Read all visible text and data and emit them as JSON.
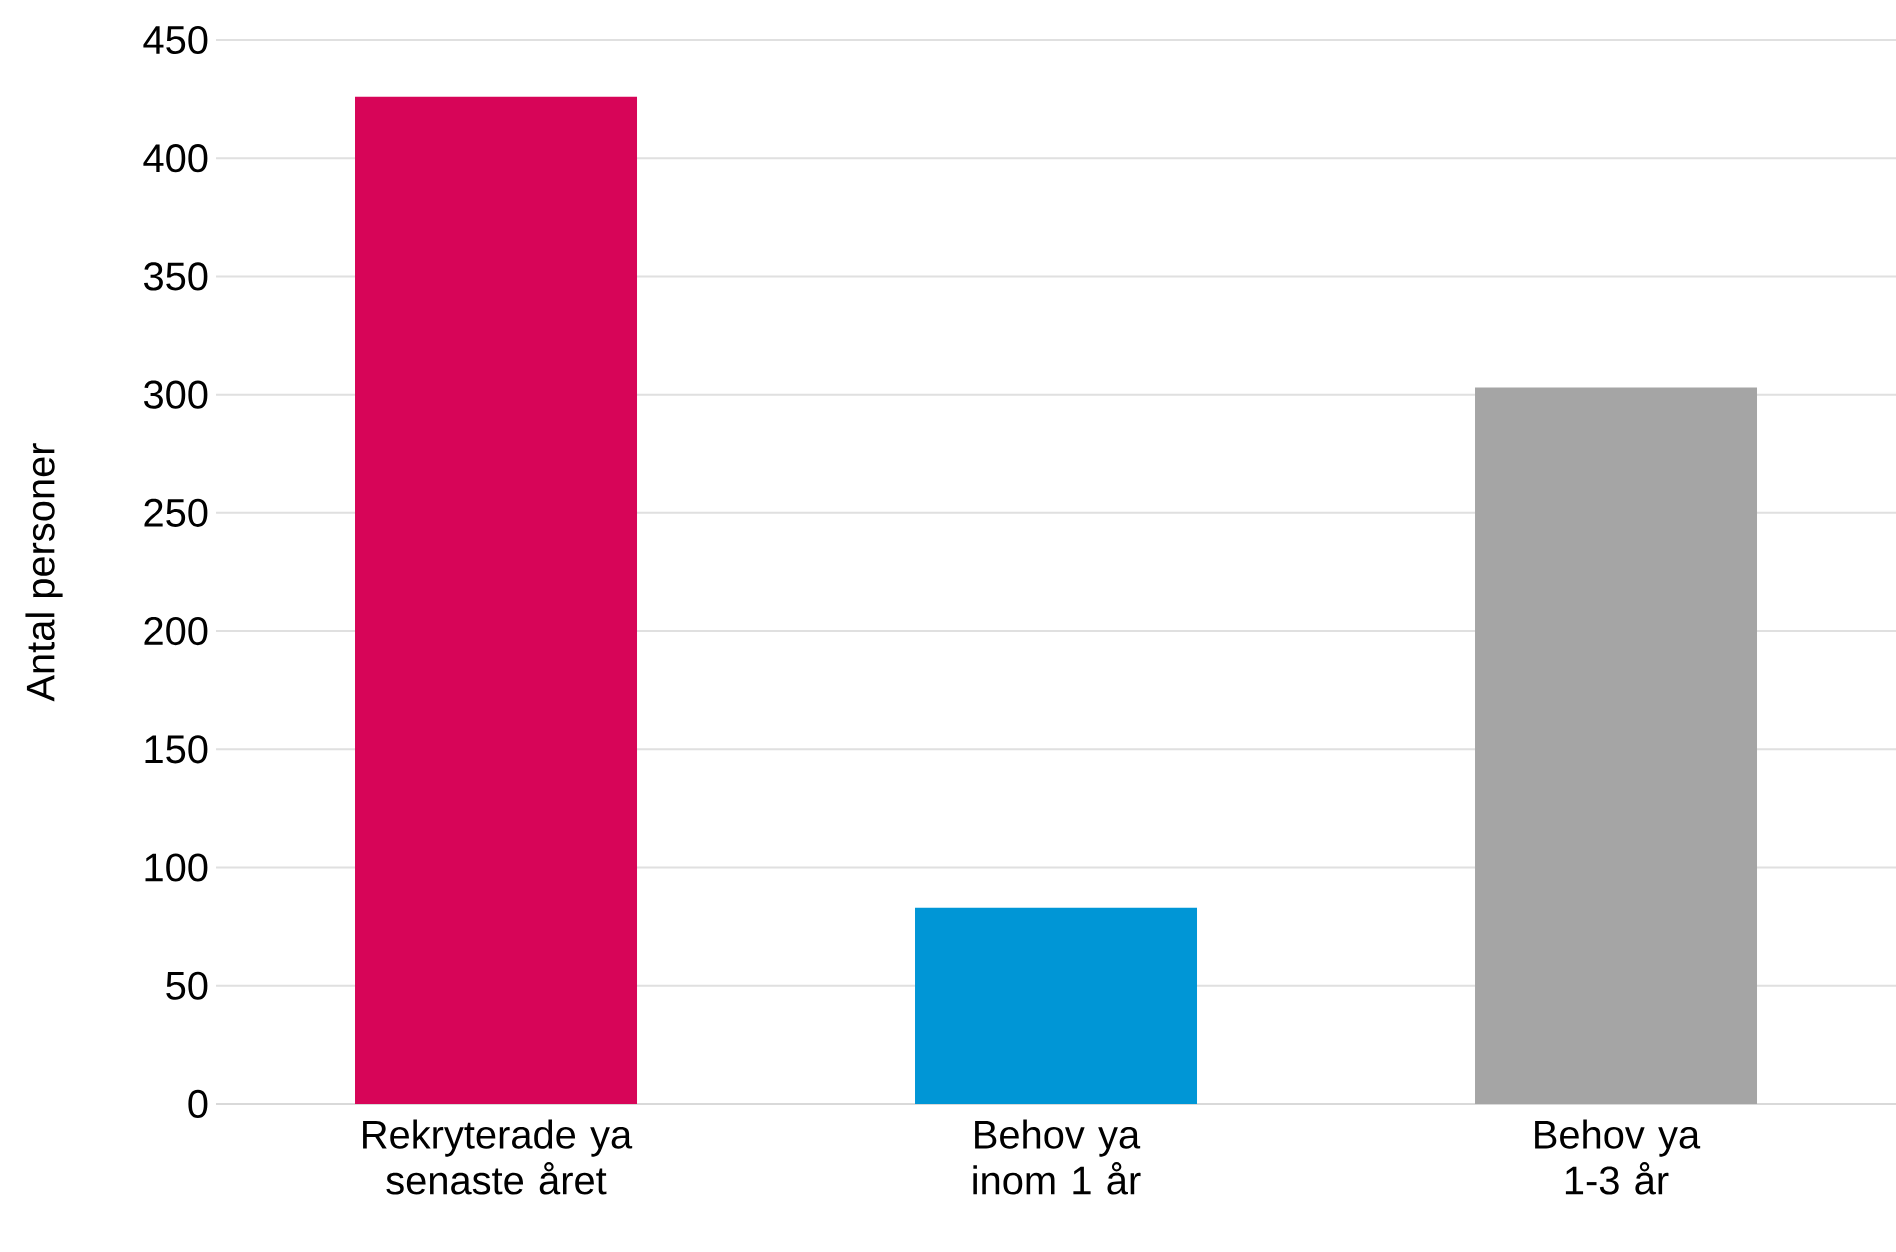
{
  "chart_data": {
    "type": "bar",
    "ylabel": "Antal personer",
    "categories": [
      "Rekryterade ya senaste året",
      "Behov ya inom 1 år",
      "Behov ya 1-3 år"
    ],
    "values": [
      426,
      83,
      303
    ],
    "colors": [
      "#d70558",
      "#0096d6",
      "#a5a5a5"
    ],
    "ylim": [
      0,
      450
    ],
    "yticks": [
      0,
      50,
      100,
      150,
      200,
      250,
      300,
      350,
      400,
      450
    ],
    "grid": "y"
  }
}
